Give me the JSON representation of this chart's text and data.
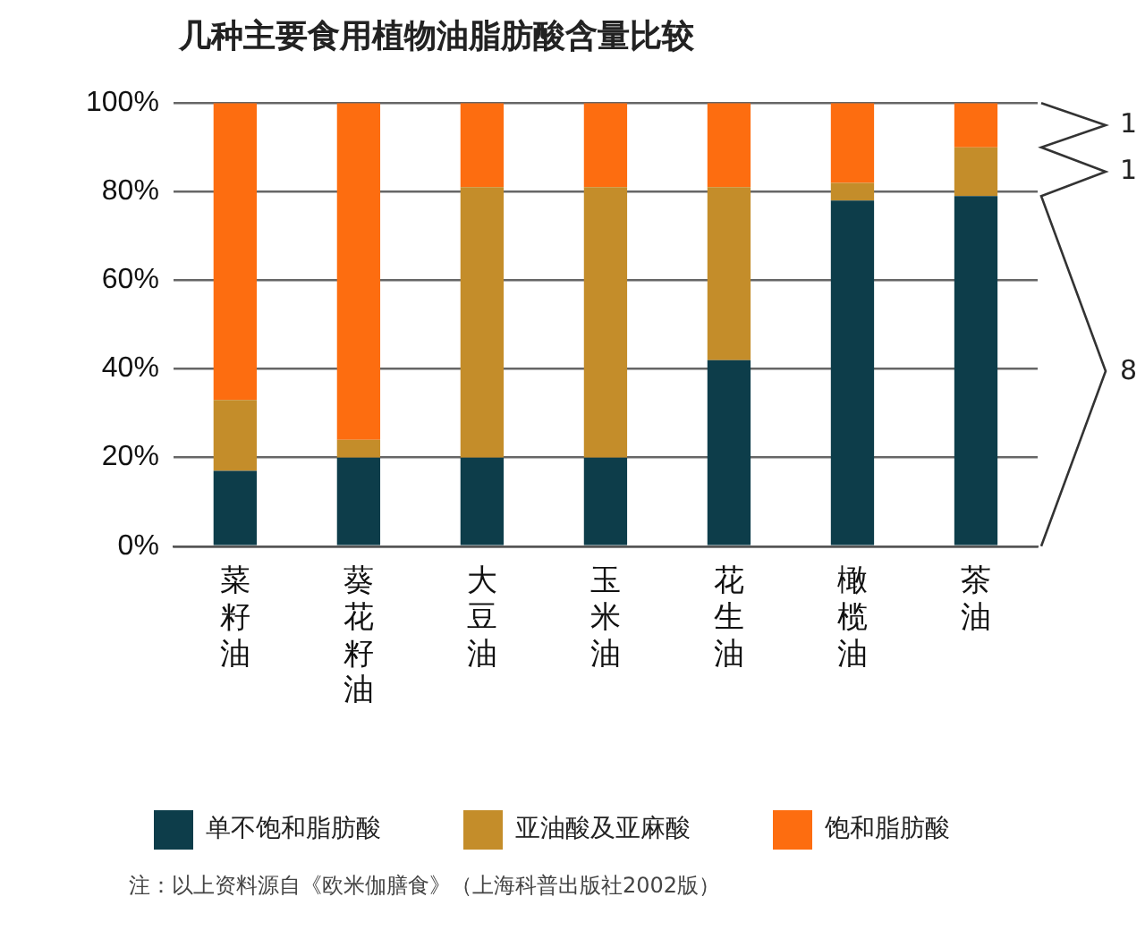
{
  "chart_data": {
    "type": "bar",
    "stacked": true,
    "title": "几种主要食用植物油脂肪酸含量比较",
    "categories": [
      "菜籽油",
      "葵花籽油",
      "大豆油",
      "玉米油",
      "花生油",
      "橄榄油",
      "茶油"
    ],
    "series": [
      {
        "name": "单不饱和脂肪酸",
        "color": "#0d3d4a",
        "values": [
          17,
          20,
          20,
          20,
          42,
          78,
          79
        ]
      },
      {
        "name": "亚油酸及亚麻酸",
        "color": "#c48d2a",
        "values": [
          16,
          4,
          61,
          61,
          39,
          4,
          11
        ]
      },
      {
        "name": "饱和脂肪酸",
        "color": "#fd6d10",
        "values": [
          67,
          76,
          19,
          19,
          19,
          18,
          10
        ]
      }
    ],
    "ylim": [
      0,
      100
    ],
    "yticks": [
      {
        "value": 0,
        "label": "0%"
      },
      {
        "value": 20,
        "label": "20%"
      },
      {
        "value": 40,
        "label": "40%"
      },
      {
        "value": 60,
        "label": "60%"
      },
      {
        "value": 80,
        "label": "80%"
      },
      {
        "value": 100,
        "label": "100%"
      }
    ],
    "grid": "y",
    "legend": "bottom",
    "annotations": [
      "1",
      "1",
      "8",
      "注：以上资料源自《欧米伽膳食》（上海科普出版社2002版）"
    ]
  }
}
